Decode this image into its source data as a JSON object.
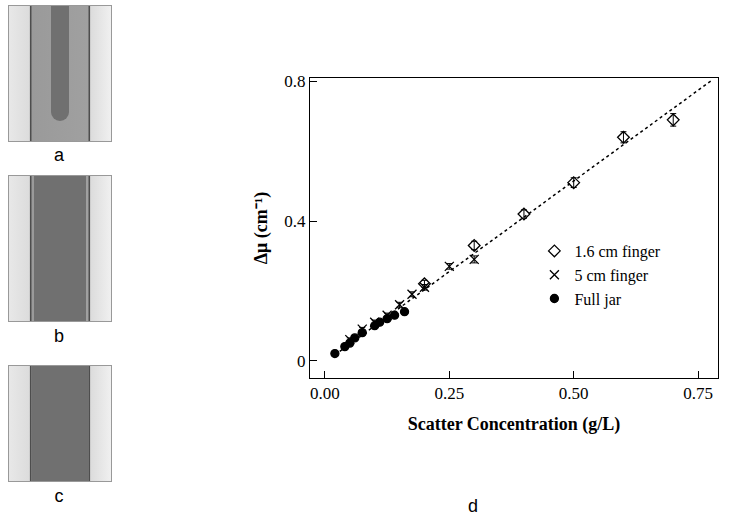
{
  "chart_data": {
    "type": "scatter",
    "x_label": "Scatter Concentration (g/L)",
    "y_label": "Δμ (cm⁻¹)",
    "xlim": [
      -0.03,
      0.79
    ],
    "ylim": [
      -0.05,
      0.81
    ],
    "xticks": [
      {
        "value": 0,
        "label": "0.00"
      },
      {
        "value": 0.25,
        "label": "0.25"
      },
      {
        "value": 0.5,
        "label": "0.50"
      },
      {
        "value": 0.75,
        "label": "0.75"
      }
    ],
    "yticks": [
      0,
      0.4,
      0.8
    ],
    "grid": false,
    "legend": "right",
    "series": [
      {
        "name": "1.6 cm finger",
        "color": "#000000",
        "marker": "diamond-open",
        "x": [
          0.2,
          0.3,
          0.4,
          0.5,
          0.6,
          0.7
        ],
        "values": [
          0.22,
          0.33,
          0.42,
          0.51,
          0.64,
          0.69
        ],
        "errors": [
          0.01,
          0.012,
          0.012,
          0.014,
          0.016,
          0.018
        ]
      },
      {
        "name": "5 cm finger",
        "color": "#000000",
        "marker": "x",
        "x": [
          0.05,
          0.075,
          0.1,
          0.125,
          0.15,
          0.175,
          0.2,
          0.25,
          0.3
        ],
        "values": [
          0.06,
          0.09,
          0.11,
          0.13,
          0.16,
          0.19,
          0.21,
          0.27,
          0.29
        ],
        "errors": [
          0.005,
          0.005,
          0.006,
          0.006,
          0.007,
          0.007,
          0.008,
          0.008,
          0.01
        ]
      },
      {
        "name": "Full jar",
        "color": "#000000",
        "marker": "circle",
        "x": [
          0.02,
          0.04,
          0.05,
          0.06,
          0.075,
          0.1,
          0.11,
          0.125,
          0.14,
          0.16
        ],
        "values": [
          0.02,
          0.04,
          0.05,
          0.065,
          0.08,
          0.1,
          0.11,
          0.12,
          0.13,
          0.14
        ],
        "errors": [
          0.003,
          0.003,
          0.003,
          0.004,
          0.004,
          0.004,
          0.005,
          0.005,
          0.005,
          0.005
        ]
      },
      {
        "type": "line",
        "color": "#000000",
        "line_style": "dot",
        "x": [
          0.02,
          0.78
        ],
        "values": [
          0.016,
          0.806
        ]
      }
    ]
  },
  "figure": {
    "panels": [
      "a",
      "b",
      "c"
    ],
    "chart_label": "d"
  }
}
